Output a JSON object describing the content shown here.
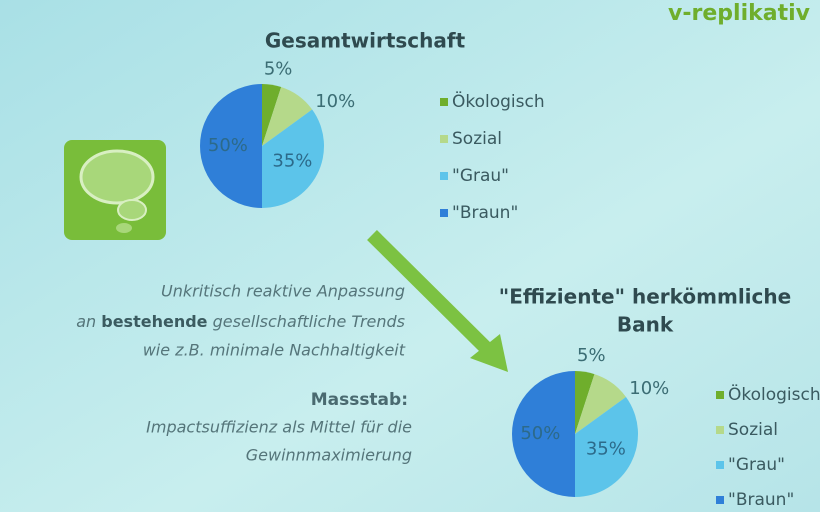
{
  "header": {
    "text": "v-replikativ"
  },
  "description": {
    "line1": "Unkritisch reaktive Anpassung",
    "line2": [
      "an ",
      "bestehende",
      " gesellschaftliche Trends"
    ],
    "line3": "wie z.B. minimale Nachhaltigkeit",
    "heading": "Massstab:",
    "line4": "Impactsuffizienz als Mittel für die",
    "line5": "Gewinnmaximierung"
  },
  "chart_data": [
    {
      "type": "pie",
      "title": [
        "Gesamtwirtschaft"
      ],
      "categories": [
        "Ökologisch",
        "Sozial",
        "\"Grau\"",
        "\"Braun\""
      ],
      "values": [
        5,
        10,
        35,
        50
      ],
      "value_labels": [
        "5%",
        "10%",
        "35%",
        "50%"
      ],
      "colors": [
        "#6fae2c",
        "#b5d98a",
        "#5cc4ea",
        "#2f7fd8"
      ]
    },
    {
      "type": "pie",
      "title": [
        "\"Effiziente\" herkömmliche",
        "Bank"
      ],
      "categories": [
        "Ökologisch",
        "Sozial",
        "\"Grau\"",
        "\"Braun\""
      ],
      "values": [
        5,
        10,
        35,
        50
      ],
      "value_labels": [
        "5%",
        "10%",
        "35%",
        "50%"
      ],
      "colors": [
        "#6fae2c",
        "#b5d98a",
        "#5cc4ea",
        "#2f7fd8"
      ]
    }
  ]
}
